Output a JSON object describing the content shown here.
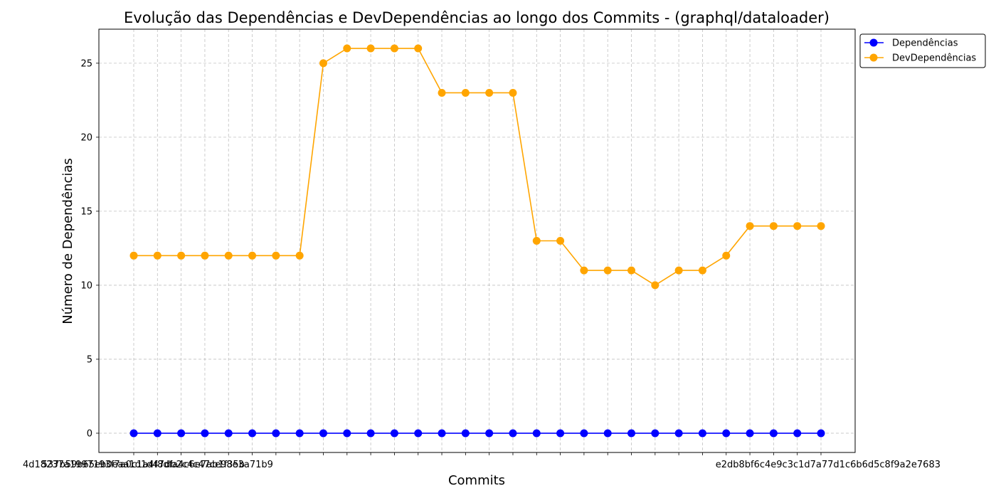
{
  "chart_data": {
    "type": "line",
    "title": "Evolução das Dependências e DevDependências ao longo dos Commits - (graphql/dataloader)",
    "xlabel": "Commits",
    "ylabel": "Número de Dependências",
    "ylim": [
      -1.3,
      27.3
    ],
    "yticks": [
      0,
      5,
      10,
      15,
      20,
      25
    ],
    "grid": true,
    "legend_position": "outside-top-right",
    "x_count": 30,
    "x_tick_labels_visible": [
      "4d18237a1997193f7a0c1a4f8dfa4c6e7ab1f35b",
      "537b59b65eb0eaa1d1d47db2c4c47ce98e3a71b9",
      "e2db8bf6c4e9c3c1d7a77d1c6b6d5c8f9a2e7683"
    ],
    "series": [
      {
        "name": "Dependências",
        "color": "#0000ff",
        "values": [
          0,
          0,
          0,
          0,
          0,
          0,
          0,
          0,
          0,
          0,
          0,
          0,
          0,
          0,
          0,
          0,
          0,
          0,
          0,
          0,
          0,
          0,
          0,
          0,
          0,
          0,
          0,
          0,
          0,
          0
        ]
      },
      {
        "name": "DevDependências",
        "color": "#ffa500",
        "values": [
          12,
          12,
          12,
          12,
          12,
          12,
          12,
          12,
          25,
          26,
          26,
          26,
          26,
          23,
          23,
          23,
          23,
          13,
          13,
          11,
          11,
          11,
          10,
          11,
          11,
          12,
          14,
          14,
          14,
          14
        ]
      }
    ]
  }
}
